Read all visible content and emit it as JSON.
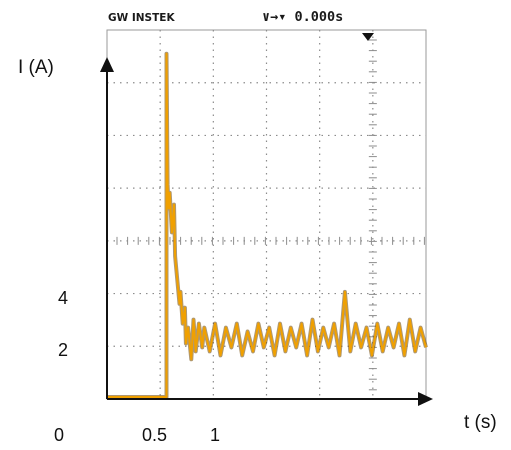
{
  "screen_header": {
    "brand": "GW INSTEK",
    "trigger_status": "∨→▾ 0.000s"
  },
  "chart_data": {
    "type": "line",
    "title": "",
    "xlabel": "t (s)",
    "ylabel": "I (A)",
    "x_ticks": [
      {
        "value": 0,
        "label": "0"
      },
      {
        "value": 0.5,
        "label": "0.5"
      },
      {
        "value": 1,
        "label": "1"
      }
    ],
    "y_ticks": [
      {
        "value": 2,
        "label": "2"
      },
      {
        "value": 4,
        "label": "4"
      }
    ],
    "xlim": [
      0,
      2.95
    ],
    "ylim": [
      0,
      9.3
    ],
    "grid": true,
    "colors": {
      "trace": "#f0a000",
      "trace_dark": "#6b4300",
      "grid": "#8c8c8c",
      "axis": "#111111"
    },
    "series": [
      {
        "x": [
          0,
          0.55,
          0.55,
          0.56,
          0.57,
          0.58,
          0.6,
          0.62,
          0.63,
          0.65,
          0.67,
          0.68,
          0.7,
          0.72,
          0.73,
          0.75,
          0.78,
          0.8,
          0.82,
          0.85,
          0.88,
          0.9,
          0.95,
          1.0,
          1.05,
          1.1,
          1.15,
          1.2,
          1.25,
          1.3,
          1.35,
          1.4,
          1.45,
          1.5,
          1.55,
          1.6,
          1.65,
          1.7,
          1.75,
          1.8,
          1.85,
          1.9,
          1.95,
          2.0,
          2.05,
          2.1,
          2.15,
          2.2,
          2.25,
          2.3,
          2.35,
          2.4,
          2.45,
          2.5,
          2.55,
          2.6,
          2.65,
          2.7,
          2.75,
          2.8,
          2.85,
          2.9,
          2.95
        ],
        "y": [
          0.05,
          0.05,
          8.7,
          5.4,
          4.8,
          5.2,
          4.2,
          4.9,
          3.6,
          3.0,
          2.4,
          2.7,
          1.9,
          2.3,
          1.4,
          1.8,
          1.0,
          2.0,
          1.2,
          1.9,
          1.3,
          1.8,
          1.2,
          1.9,
          1.1,
          1.8,
          1.3,
          1.9,
          1.1,
          1.7,
          1.2,
          1.9,
          1.3,
          1.8,
          1.1,
          1.9,
          1.2,
          1.8,
          1.3,
          1.9,
          1.1,
          2.0,
          1.2,
          1.8,
          1.3,
          1.9,
          1.1,
          2.7,
          1.2,
          1.9,
          1.3,
          1.8,
          1.1,
          1.9,
          1.2,
          1.8,
          1.3,
          1.9,
          1.1,
          2.0,
          1.2,
          1.8,
          1.3
        ]
      }
    ]
  }
}
